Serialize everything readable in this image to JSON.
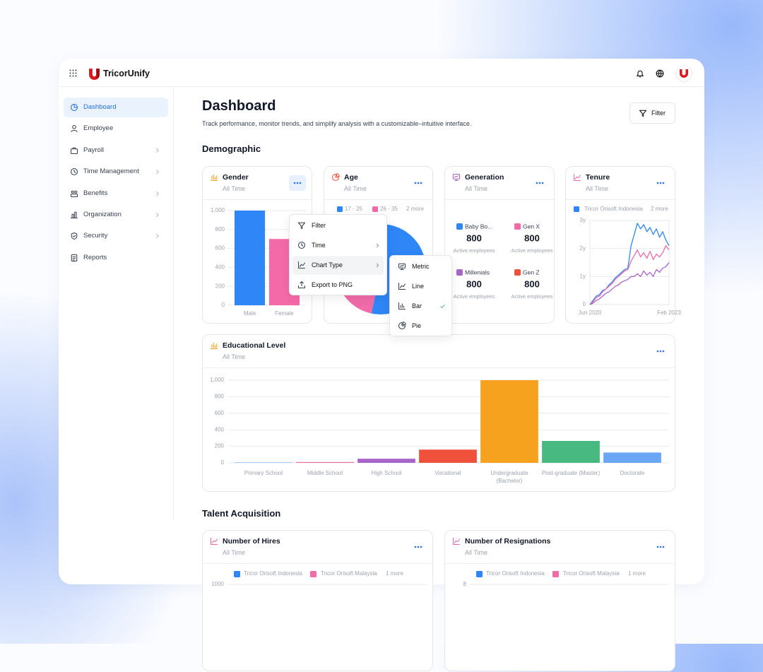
{
  "header": {
    "brand": "TricorUnify"
  },
  "sidebar": {
    "items": [
      {
        "label": "Dashboard",
        "active": true,
        "has_submenu": false
      },
      {
        "label": "Employee",
        "active": false,
        "has_submenu": false
      },
      {
        "label": "Payroll",
        "active": false,
        "has_submenu": true
      },
      {
        "label": "Time Management",
        "active": false,
        "has_submenu": true
      },
      {
        "label": "Benefits",
        "active": false,
        "has_submenu": true
      },
      {
        "label": "Organization",
        "active": false,
        "has_submenu": true
      },
      {
        "label": "Security",
        "active": false,
        "has_submenu": true
      },
      {
        "label": "Reports",
        "active": false,
        "has_submenu": false
      }
    ]
  },
  "page": {
    "title": "Dashboard",
    "subtitle": "Track performance, monitor trends, and simplify analysis with a customizable–intuitive interface.",
    "filter_button": "Filter"
  },
  "sections": {
    "demographic": "Demographic",
    "talent_acquisition": "Talent Acquisition"
  },
  "chart_data": [
    {
      "type": "bar",
      "title": "Gender",
      "subtitle": "All Time",
      "categories": [
        "Male",
        "Female"
      ],
      "values": [
        1000,
        700
      ],
      "colors": [
        "#2f86f6",
        "#f46aa8"
      ],
      "ylim": [
        0,
        1000
      ],
      "yticks": [
        0,
        200,
        400,
        600,
        800,
        {
          "value": 1000,
          "label": "1,000"
        }
      ],
      "grid": true
    },
    {
      "type": "pie",
      "title": "Age",
      "subtitle": "All Time",
      "categories": [
        "17 - 25",
        "26 - 35"
      ],
      "values": [
        40,
        35
      ],
      "colors": [
        "#2f86f6",
        "#f06ba8"
      ],
      "legend_more": "2 more"
    },
    {
      "type": "metric",
      "title": "Generation",
      "subtitle": "All Time",
      "categories": [
        "Baby Bo...",
        "Gen X",
        "Millenials",
        "Gen Z"
      ],
      "values": [
        800,
        800,
        800,
        800
      ],
      "colors": [
        "#2f86f6",
        "#f06ba8",
        "#a865c9",
        "#f0513a"
      ],
      "value_caption": "Active employees"
    },
    {
      "type": "line",
      "title": "Tenure",
      "subtitle": "All Time",
      "categories": [
        "Jun 2020",
        null,
        null,
        null,
        null,
        null,
        null,
        null,
        null,
        null,
        null,
        null,
        null,
        null,
        null,
        null,
        null,
        null,
        null,
        null,
        null,
        null,
        null,
        null,
        null,
        "Feb 2023"
      ],
      "series": [
        {
          "name": "Tricor Orisoft Indonesia",
          "color": "#2f86f6",
          "values": [
            0,
            0.15,
            0.3,
            0.35,
            0.5,
            0.55,
            0.7,
            0.8,
            0.95,
            1.05,
            1.15,
            1.25,
            1.3,
            2.1,
            2.5,
            2.9,
            2.7,
            2.85,
            2.6,
            2.75,
            2.5,
            2.7,
            2.4,
            2.6,
            2.3,
            2.1
          ]
        },
        {
          "color": "#f06ba8",
          "values": [
            0,
            0.1,
            0.25,
            0.3,
            0.45,
            0.55,
            0.65,
            0.75,
            0.9,
            1.0,
            1.1,
            1.2,
            1.25,
            1.55,
            1.75,
            1.95,
            1.7,
            1.85,
            1.65,
            1.9,
            1.6,
            1.8,
            1.7,
            1.85,
            2.1,
            1.95
          ]
        },
        {
          "color": "#a865c9",
          "values": [
            0,
            0.05,
            0.15,
            0.2,
            0.3,
            0.4,
            0.45,
            0.55,
            0.65,
            0.7,
            0.8,
            0.85,
            0.9,
            1.0,
            1.0,
            1.1,
            1.0,
            1.2,
            1.05,
            1.15,
            1.0,
            1.25,
            1.15,
            1.3,
            1.35,
            1.5
          ]
        }
      ],
      "legend_more": "2 more",
      "ylim": [
        0,
        3
      ],
      "yticks": [
        0,
        {
          "value": 1,
          "label": "1y"
        },
        {
          "value": 2,
          "label": "2y"
        },
        {
          "value": 3,
          "label": "3y"
        }
      ],
      "grid": true
    },
    {
      "type": "bar",
      "title": "Educational Level",
      "subtitle": "All Time",
      "categories": [
        "Primary School",
        "Middle School",
        "High School",
        "Vocational",
        "Undergraduate (Bachelor)",
        "Post-graduate (Master)",
        "Doctorate"
      ],
      "values": [
        5,
        10,
        50,
        160,
        1000,
        265,
        125
      ],
      "colors": [
        "#69a7f5",
        "#f06ba8",
        "#a865c9",
        "#f0513a",
        "#f6a21e",
        "#48b980",
        "#69a7f5"
      ],
      "ylim": [
        0,
        1000
      ],
      "yticks": [
        0,
        200,
        400,
        600,
        800,
        {
          "value": 1000,
          "label": "1,000"
        }
      ],
      "grid": true
    },
    {
      "type": "line",
      "title": "Number of Hires",
      "subtitle": "All Time",
      "series": [
        {
          "name": "Tricor Orisoft Indonesia",
          "color": "#2f86f6"
        },
        {
          "name": "Tricor Orisoft Malaysia",
          "color": "#f06ba8"
        }
      ],
      "legend_more": "1 more",
      "yticks": [
        1000
      ]
    },
    {
      "type": "line",
      "title": "Number of Resignations",
      "subtitle": "All Time",
      "series": [
        {
          "name": "Tricor Orisoft Indonesia",
          "color": "#2f86f6"
        },
        {
          "name": "Tricor Orisoft Malaysia",
          "color": "#f06ba8"
        }
      ],
      "legend_more": "1 more",
      "yticks": [
        8
      ]
    }
  ],
  "context_menu": {
    "items": [
      {
        "label": "Filter",
        "has_submenu": false
      },
      {
        "label": "Time",
        "has_submenu": true
      },
      {
        "label": "Chart Type",
        "has_submenu": true,
        "hovered": true
      },
      {
        "label": "Export to PNG",
        "has_submenu": false
      }
    ],
    "submenu": {
      "items": [
        {
          "label": "Metric"
        },
        {
          "label": "Line"
        },
        {
          "label": "Bar",
          "selected": true
        },
        {
          "label": "Pie"
        }
      ]
    }
  }
}
